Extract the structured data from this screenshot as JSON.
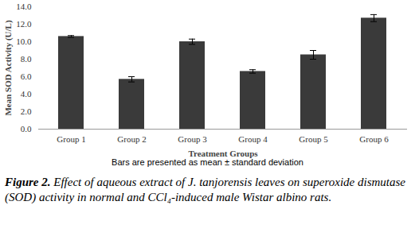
{
  "chart_data": {
    "type": "bar",
    "xlabel": "Treatment Groups",
    "ylabel": "Mean SOD Activity (U/L)",
    "categories": [
      "Group 1",
      "Group 2",
      "Group 3",
      "Group 4",
      "Group 5",
      "Group 6"
    ],
    "values": [
      10.6,
      5.7,
      10.0,
      6.6,
      8.5,
      12.7
    ],
    "errors": [
      0.1,
      0.3,
      0.3,
      0.2,
      0.5,
      0.4
    ],
    "color": "#3a3a3a",
    "ylim": [
      0,
      14
    ],
    "yticks": [
      {
        "value": 0,
        "label": "0.0"
      },
      {
        "value": 2,
        "label": "2.0"
      },
      {
        "value": 4,
        "label": "4.0"
      },
      {
        "value": 6,
        "label": "6.0"
      },
      {
        "value": 8,
        "label": "8.0"
      },
      {
        "value": 10,
        "label": "10.0"
      },
      {
        "value": 12,
        "label": "12.0"
      },
      {
        "value": 14,
        "label": "14.0"
      }
    ],
    "grid": false,
    "note": "Bars are presented as mean ± standard deviation",
    "caption_label": "Figure 2.",
    "caption": "Effect of aqueous extract of J. tanjorensis leaves on superoxide dismutase (SOD) activity in normal and CCl₄-induced male Wistar albino rats."
  }
}
